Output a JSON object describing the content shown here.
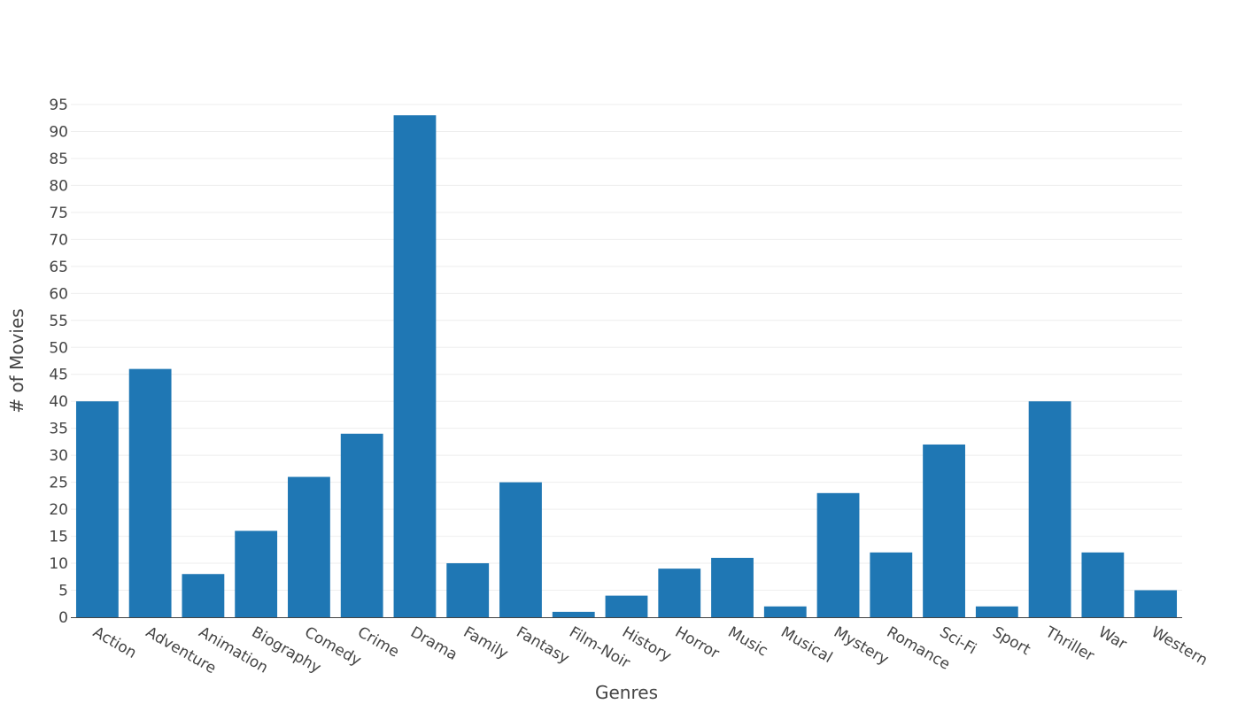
{
  "chart_data": {
    "type": "bar",
    "title": "",
    "xlabel": "Genres",
    "ylabel": "# of Movies",
    "ylim": [
      0,
      95
    ],
    "ytick_step": 5,
    "grid": true,
    "bar_color": "#1f77b4",
    "categories": [
      "Action",
      "Adventure",
      "Animation",
      "Biography",
      "Comedy",
      "Crime",
      "Drama",
      "Family",
      "Fantasy",
      "Film-Noir",
      "History",
      "Horror",
      "Music",
      "Musical",
      "Mystery",
      "Romance",
      "Sci-Fi",
      "Sport",
      "Thriller",
      "War",
      "Western"
    ],
    "values": [
      40,
      46,
      8,
      16,
      26,
      34,
      93,
      10,
      25,
      1,
      4,
      9,
      11,
      2,
      23,
      12,
      32,
      2,
      40,
      12,
      5
    ]
  }
}
